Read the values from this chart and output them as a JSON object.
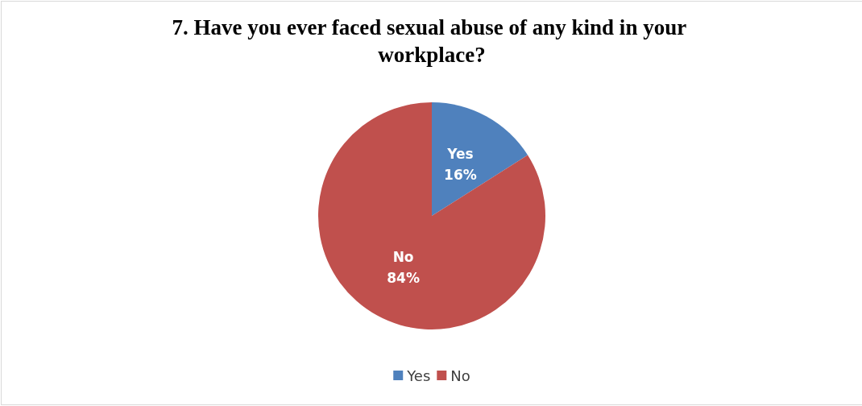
{
  "chart_data": {
    "type": "pie",
    "title": "7. Have you ever faced sexual abuse of any kind in your workplace?",
    "categories": [
      "Yes",
      "No"
    ],
    "values": [
      16,
      84
    ],
    "colors": [
      "#4f81bd",
      "#c0504d"
    ],
    "value_labels": [
      "16%",
      "84%"
    ],
    "legend": "bottom"
  }
}
